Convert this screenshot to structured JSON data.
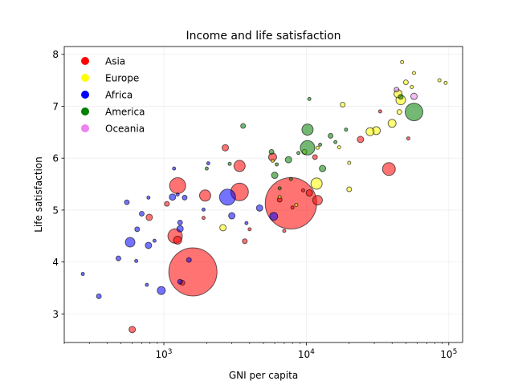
{
  "chart_data": {
    "type": "scatter",
    "title": "Income and life satisfaction",
    "xlabel": "GNI per capita",
    "ylabel": "Life satisfaction",
    "x_scale": "log",
    "xlim": [
      200,
      125000
    ],
    "ylim": [
      2.45,
      8.15
    ],
    "x_ticks": [
      {
        "value": 1000,
        "base": "10",
        "exp": "3"
      },
      {
        "value": 10000,
        "base": "10",
        "exp": "4"
      },
      {
        "value": 100000,
        "base": "10",
        "exp": "5"
      }
    ],
    "y_ticks": [
      3,
      4,
      5,
      6,
      7,
      8
    ],
    "y_tick_labels": [
      "3",
      "4",
      "5",
      "6",
      "7",
      "8"
    ],
    "grid": true,
    "legend_position": "top-left",
    "series": [
      {
        "name": "Asia",
        "color": "#ff0000",
        "points": [
          {
            "x": 1600,
            "y": 3.81,
            "size": 30
          },
          {
            "x": 7800,
            "y": 5.13,
            "size": 32
          },
          {
            "x": 1250,
            "y": 5.47,
            "size": 10
          },
          {
            "x": 3400,
            "y": 5.35,
            "size": 11
          },
          {
            "x": 1200,
            "y": 4.5,
            "size": 9
          },
          {
            "x": 3400,
            "y": 5.85,
            "size": 7
          },
          {
            "x": 1950,
            "y": 5.28,
            "size": 7
          },
          {
            "x": 38000,
            "y": 5.79,
            "size": 8
          },
          {
            "x": 12000,
            "y": 5.19,
            "size": 6
          },
          {
            "x": 600,
            "y": 2.7,
            "size": 4
          },
          {
            "x": 1250,
            "y": 4.42,
            "size": 5
          },
          {
            "x": 5800,
            "y": 6.02,
            "size": 5
          },
          {
            "x": 2700,
            "y": 6.2,
            "size": 4
          },
          {
            "x": 10500,
            "y": 5.33,
            "size": 4
          },
          {
            "x": 24000,
            "y": 6.36,
            "size": 4
          },
          {
            "x": 790,
            "y": 4.86,
            "size": 4
          },
          {
            "x": 1050,
            "y": 5.12,
            "size": 3
          },
          {
            "x": 3700,
            "y": 4.4,
            "size": 3
          },
          {
            "x": 11500,
            "y": 6.02,
            "size": 3
          },
          {
            "x": 6500,
            "y": 5.2,
            "size": 3
          },
          {
            "x": 1350,
            "y": 3.6,
            "size": 3
          },
          {
            "x": 4000,
            "y": 4.63,
            "size": 2
          },
          {
            "x": 1900,
            "y": 4.85,
            "size": 2
          },
          {
            "x": 7000,
            "y": 4.6,
            "size": 2
          },
          {
            "x": 8000,
            "y": 5.05,
            "size": 2
          },
          {
            "x": 33000,
            "y": 6.9,
            "size": 2
          },
          {
            "x": 52000,
            "y": 6.38,
            "size": 2
          },
          {
            "x": 9500,
            "y": 5.38,
            "size": 2
          }
        ]
      },
      {
        "name": "Europe",
        "color": "#ffff00",
        "points": [
          {
            "x": 11800,
            "y": 5.51,
            "size": 7
          },
          {
            "x": 46000,
            "y": 7.12,
            "size": 6
          },
          {
            "x": 44000,
            "y": 7.24,
            "size": 5
          },
          {
            "x": 31000,
            "y": 6.53,
            "size": 5
          },
          {
            "x": 28000,
            "y": 6.51,
            "size": 5
          },
          {
            "x": 40000,
            "y": 6.67,
            "size": 5
          },
          {
            "x": 2600,
            "y": 4.66,
            "size": 4
          },
          {
            "x": 50000,
            "y": 7.46,
            "size": 3
          },
          {
            "x": 18000,
            "y": 7.03,
            "size": 3
          },
          {
            "x": 20000,
            "y": 5.4,
            "size": 3
          },
          {
            "x": 9700,
            "y": 6.12,
            "size": 3
          },
          {
            "x": 45000,
            "y": 6.89,
            "size": 3
          },
          {
            "x": 55000,
            "y": 7.37,
            "size": 2
          },
          {
            "x": 6500,
            "y": 5.25,
            "size": 2
          },
          {
            "x": 8500,
            "y": 5.1,
            "size": 2
          },
          {
            "x": 20000,
            "y": 5.91,
            "size": 2
          },
          {
            "x": 86000,
            "y": 7.5,
            "size": 2
          },
          {
            "x": 95000,
            "y": 7.45,
            "size": 2
          },
          {
            "x": 47000,
            "y": 7.85,
            "size": 2
          },
          {
            "x": 57000,
            "y": 7.64,
            "size": 2
          },
          {
            "x": 17000,
            "y": 6.21,
            "size": 2
          },
          {
            "x": 5800,
            "y": 5.95,
            "size": 2
          },
          {
            "x": 12000,
            "y": 6.2,
            "size": 2
          }
        ]
      },
      {
        "name": "Africa",
        "color": "#0000ff",
        "points": [
          {
            "x": 2800,
            "y": 5.25,
            "size": 10
          },
          {
            "x": 580,
            "y": 4.38,
            "size": 6
          },
          {
            "x": 960,
            "y": 3.45,
            "size": 5
          },
          {
            "x": 5900,
            "y": 4.88,
            "size": 5
          },
          {
            "x": 4700,
            "y": 5.04,
            "size": 4
          },
          {
            "x": 780,
            "y": 4.32,
            "size": 4
          },
          {
            "x": 3000,
            "y": 4.89,
            "size": 4
          },
          {
            "x": 1300,
            "y": 4.64,
            "size": 4
          },
          {
            "x": 1150,
            "y": 5.25,
            "size": 4
          },
          {
            "x": 1400,
            "y": 5.24,
            "size": 3
          },
          {
            "x": 480,
            "y": 4.07,
            "size": 3
          },
          {
            "x": 550,
            "y": 5.15,
            "size": 3
          },
          {
            "x": 650,
            "y": 4.63,
            "size": 3
          },
          {
            "x": 700,
            "y": 4.93,
            "size": 3
          },
          {
            "x": 1300,
            "y": 4.76,
            "size": 3
          },
          {
            "x": 1500,
            "y": 4.04,
            "size": 3
          },
          {
            "x": 1300,
            "y": 3.62,
            "size": 3
          },
          {
            "x": 350,
            "y": 3.34,
            "size": 3
          },
          {
            "x": 270,
            "y": 3.77,
            "size": 2
          },
          {
            "x": 760,
            "y": 3.56,
            "size": 2
          },
          {
            "x": 780,
            "y": 5.24,
            "size": 2
          },
          {
            "x": 640,
            "y": 4.02,
            "size": 2
          },
          {
            "x": 1180,
            "y": 5.8,
            "size": 2
          },
          {
            "x": 1250,
            "y": 5.3,
            "size": 2
          },
          {
            "x": 2050,
            "y": 5.9,
            "size": 2
          },
          {
            "x": 3800,
            "y": 4.75,
            "size": 2
          },
          {
            "x": 860,
            "y": 4.41,
            "size": 2
          },
          {
            "x": 1900,
            "y": 5.01,
            "size": 2
          }
        ]
      },
      {
        "name": "America",
        "color": "#008000",
        "points": [
          {
            "x": 57000,
            "y": 6.89,
            "size": 11
          },
          {
            "x": 10200,
            "y": 6.2,
            "size": 9
          },
          {
            "x": 10200,
            "y": 6.55,
            "size": 7
          },
          {
            "x": 6000,
            "y": 5.67,
            "size": 4
          },
          {
            "x": 13000,
            "y": 5.8,
            "size": 4
          },
          {
            "x": 7500,
            "y": 5.97,
            "size": 4
          },
          {
            "x": 3600,
            "y": 6.62,
            "size": 3
          },
          {
            "x": 14800,
            "y": 6.43,
            "size": 3
          },
          {
            "x": 46000,
            "y": 7.18,
            "size": 3
          },
          {
            "x": 5700,
            "y": 6.12,
            "size": 3
          },
          {
            "x": 6500,
            "y": 5.42,
            "size": 2
          },
          {
            "x": 2900,
            "y": 5.89,
            "size": 2
          },
          {
            "x": 2000,
            "y": 5.8,
            "size": 2
          },
          {
            "x": 16000,
            "y": 6.31,
            "size": 2
          },
          {
            "x": 10500,
            "y": 7.14,
            "size": 2
          },
          {
            "x": 6200,
            "y": 5.88,
            "size": 2
          },
          {
            "x": 7800,
            "y": 5.6,
            "size": 2
          },
          {
            "x": 12500,
            "y": 6.26,
            "size": 2
          },
          {
            "x": 8800,
            "y": 6.1,
            "size": 2
          },
          {
            "x": 19000,
            "y": 6.55,
            "size": 2
          }
        ]
      },
      {
        "name": "Oceania",
        "color": "#ee82ee",
        "points": [
          {
            "x": 57000,
            "y": 7.19,
            "size": 4
          },
          {
            "x": 43000,
            "y": 7.32,
            "size": 3
          }
        ]
      }
    ]
  }
}
